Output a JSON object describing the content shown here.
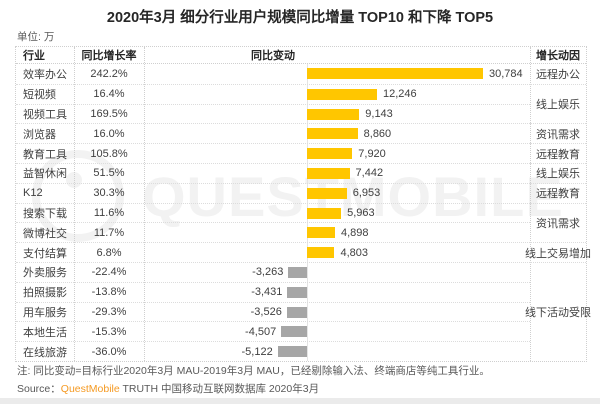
{
  "title": "2020年3月 细分行业用户规模同比增量 TOP10 和下降 TOP5",
  "unit_label": "单位: 万",
  "columns": {
    "industry": "行业",
    "growth_rate": "同比增长率",
    "yoy_change": "同比变动",
    "driver": "增长动因"
  },
  "watermark_text": "QUESTMOBILE",
  "colors": {
    "positive_bar": "#FFC600",
    "negative_bar": "#A6A6A6",
    "brand_orange": "#F59A23"
  },
  "notes": {
    "note": "注: 同比变动=目标行业2020年3月 MAU-2019年3月 MAU，已经剔除输入法、终端商店等纯工具行业。",
    "source_prefix": "Source：",
    "source_brand": "QuestMobile",
    "source_suffix": " TRUTH 中国移动互联网数据库 2020年3月"
  },
  "chart_data": {
    "type": "bar",
    "orientation": "horizontal",
    "title": "2020年3月 细分行业用户规模同比增量 TOP10 和下降 TOP5",
    "unit": "万",
    "value_axis_max": 30784,
    "rows": [
      {
        "industry": "效率办公",
        "growth_rate": "242.2%",
        "value": 30784,
        "label": "30,784",
        "driver": "远程办公"
      },
      {
        "industry": "短视频",
        "growth_rate": "16.4%",
        "value": 12246,
        "label": "12,246",
        "driver": "线上娱乐"
      },
      {
        "industry": "视频工具",
        "growth_rate": "169.5%",
        "value": 9143,
        "label": "9,143",
        "driver": "线上娱乐"
      },
      {
        "industry": "浏览器",
        "growth_rate": "16.0%",
        "value": 8860,
        "label": "8,860",
        "driver": "资讯需求"
      },
      {
        "industry": "教育工具",
        "growth_rate": "105.8%",
        "value": 7920,
        "label": "7,920",
        "driver": "远程教育"
      },
      {
        "industry": "益智休闲",
        "growth_rate": "51.5%",
        "value": 7442,
        "label": "7,442",
        "driver": "线上娱乐"
      },
      {
        "industry": "K12",
        "growth_rate": "30.3%",
        "value": 6953,
        "label": "6,953",
        "driver": "远程教育"
      },
      {
        "industry": "搜索下载",
        "growth_rate": "11.6%",
        "value": 5963,
        "label": "5,963",
        "driver": "资讯需求"
      },
      {
        "industry": "微博社交",
        "growth_rate": "11.7%",
        "value": 4898,
        "label": "4,898",
        "driver": "资讯需求"
      },
      {
        "industry": "支付结算",
        "growth_rate": "6.8%",
        "value": 4803,
        "label": "4,803",
        "driver": "线上交易增加"
      },
      {
        "industry": "外卖服务",
        "growth_rate": "-22.4%",
        "value": -3263,
        "label": "-3,263",
        "driver": "线下活动受限"
      },
      {
        "industry": "拍照摄影",
        "growth_rate": "-13.8%",
        "value": -3431,
        "label": "-3,431",
        "driver": "线下活动受限"
      },
      {
        "industry": "用车服务",
        "growth_rate": "-29.3%",
        "value": -3526,
        "label": "-3,526",
        "driver": "线下活动受限"
      },
      {
        "industry": "本地生活",
        "growth_rate": "-15.3%",
        "value": -4507,
        "label": "-4,507",
        "driver": "线下活动受限"
      },
      {
        "industry": "在线旅游",
        "growth_rate": "-36.0%",
        "value": -5122,
        "label": "-5,122",
        "driver": "线下活动受限"
      }
    ],
    "driver_groups": [
      {
        "label": "远程办公",
        "rows": 1
      },
      {
        "label": "线上娱乐",
        "rows": 2
      },
      {
        "label": "资讯需求",
        "rows": 1
      },
      {
        "label": "远程教育",
        "rows": 1
      },
      {
        "label": "线上娱乐",
        "rows": 1
      },
      {
        "label": "远程教育",
        "rows": 1
      },
      {
        "label": "资讯需求",
        "rows": 2
      },
      {
        "label": "线上交易增加",
        "rows": 1
      },
      {
        "label": "线下活动受限",
        "rows": 5
      }
    ]
  }
}
